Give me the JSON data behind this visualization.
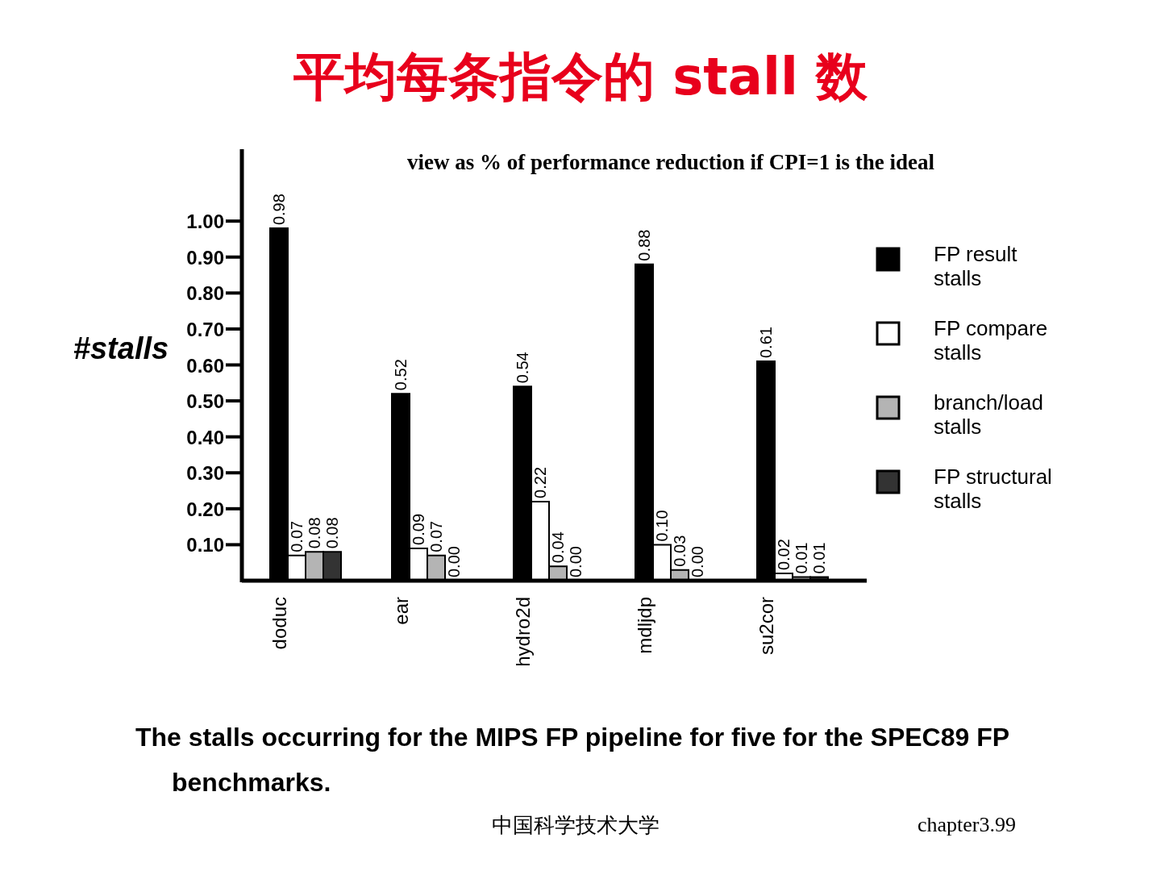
{
  "chart_data": {
    "type": "bar",
    "title": "平均每条指令的 stall 数",
    "subtitle": "view as % of performance reduction if CPI=1 is the ideal",
    "ylabel": "#stalls",
    "categories": [
      "doduc",
      "ear",
      "hydro2d",
      "mdljdp",
      "su2cor"
    ],
    "series": [
      {
        "name": "FP result stalls",
        "color": "#000000",
        "values": [
          0.98,
          0.52,
          0.54,
          0.88,
          0.61
        ],
        "value_labels": [
          "0.98",
          "0.52",
          "0.54",
          "0.88",
          "0.61"
        ]
      },
      {
        "name": "FP compare stalls",
        "color": "#ffffff",
        "values": [
          0.07,
          0.09,
          0.22,
          0.1,
          0.02
        ],
        "value_labels": [
          "0.07",
          "0.09",
          "0.22",
          "0.10",
          "0.02"
        ]
      },
      {
        "name": "branch/load stalls",
        "color": "#b4b4b4",
        "values": [
          0.08,
          0.07,
          0.04,
          0.03,
          0.01
        ],
        "value_labels": [
          "0.08",
          "0.07",
          "0.04",
          "0.03",
          "0.01"
        ]
      },
      {
        "name": "FP structural stalls",
        "color": "#333333",
        "values": [
          0.08,
          0.0,
          0.0,
          0.0,
          0.01
        ],
        "value_labels": [
          "0.08",
          "0.00",
          "0.00",
          "0.00",
          "0.01"
        ]
      }
    ],
    "ylim": [
      0,
      1.2
    ],
    "yticks": [
      {
        "value": 0.1,
        "label": "0.10"
      },
      {
        "value": 0.2,
        "label": "0.20"
      },
      {
        "value": 0.3,
        "label": "0.30"
      },
      {
        "value": 0.4,
        "label": "0.40"
      },
      {
        "value": 0.5,
        "label": "0.50"
      },
      {
        "value": 0.6,
        "label": "0.60"
      },
      {
        "value": 0.7,
        "label": "0.70"
      },
      {
        "value": 0.8,
        "label": "0.80"
      },
      {
        "value": 0.9,
        "label": "0.90"
      },
      {
        "value": 1.0,
        "label": "1.00"
      }
    ],
    "legend": "right",
    "annotations": [
      "The stalls occurring for the MIPS FP pipeline for five for the SPEC89 FP benchmarks.",
      "中国科学技术大学",
      "chapter3.99"
    ]
  }
}
